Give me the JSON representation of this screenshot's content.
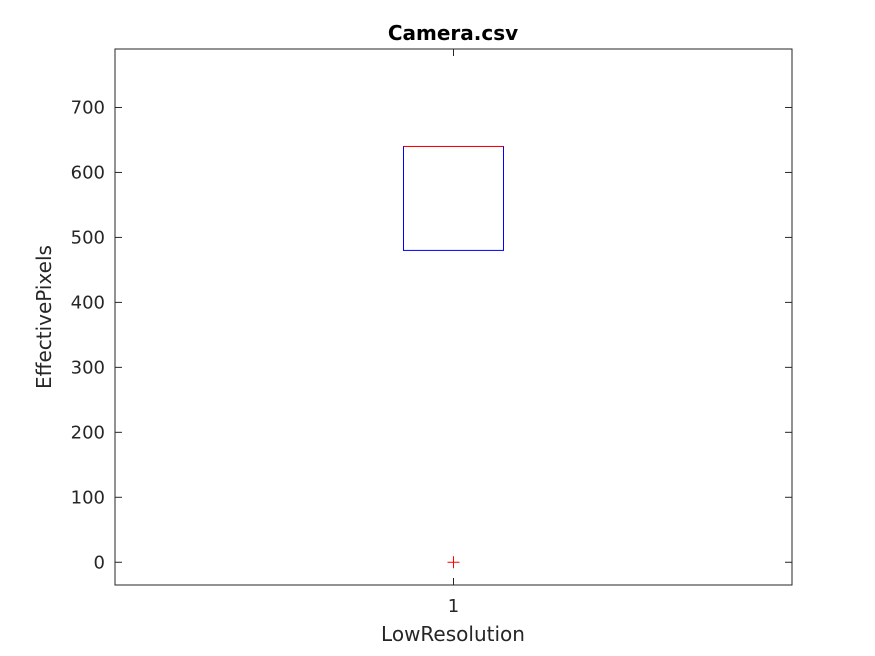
{
  "chart_data": {
    "type": "box",
    "title": "Camera.csv",
    "xlabel": "LowResolution",
    "ylabel": "EffectivePixels",
    "categories": [
      "1"
    ],
    "ylim": [
      -35,
      790
    ],
    "yticks": [
      0,
      100,
      200,
      300,
      400,
      500,
      600,
      700
    ],
    "grid": false,
    "boxes": [
      {
        "category": "1",
        "q1": 480,
        "median": 640,
        "q3": 640,
        "whisker_low": 480,
        "whisker_high": 640,
        "outliers": [
          0
        ]
      }
    ],
    "colors": {
      "box": "#0000ff",
      "median": "#ff0000",
      "outlier": "#ff0000",
      "axis": "#262626"
    }
  }
}
